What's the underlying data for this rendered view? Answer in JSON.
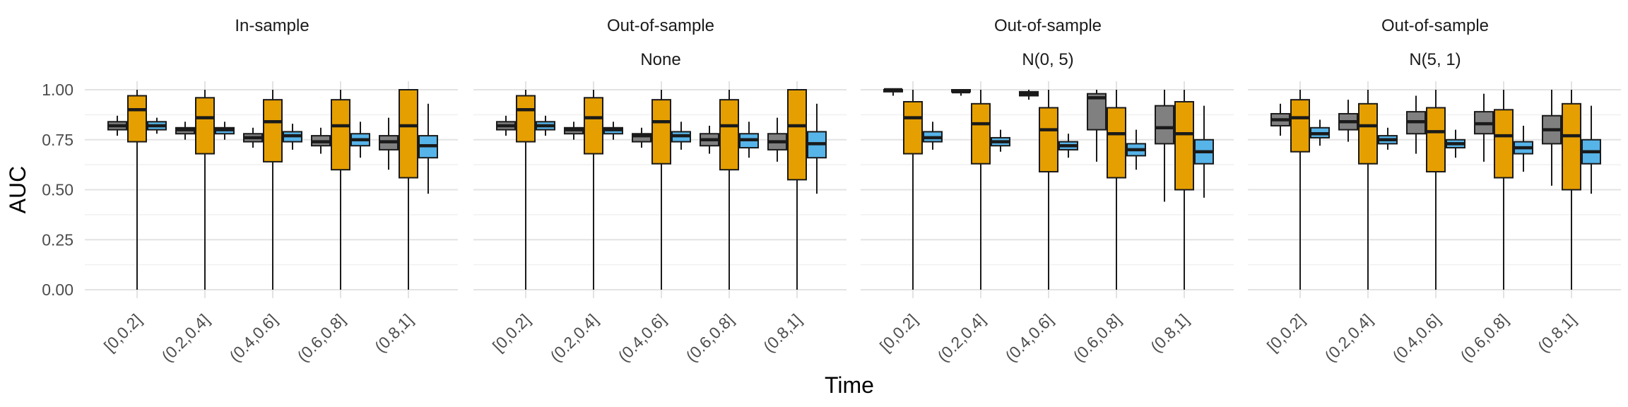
{
  "chart_data": {
    "type": "boxplot",
    "xlabel": "Time",
    "ylabel": "AUC",
    "ylim": [
      0,
      1
    ],
    "y_ticks": [
      "0.00",
      "0.25",
      "0.50",
      "0.75",
      "1.00"
    ],
    "y_tick_values": [
      0,
      0.25,
      0.5,
      0.75,
      1.0
    ],
    "categories": [
      "[0,0.2]",
      "(0.2,0.4]",
      "(0.4,0.6]",
      "(0.6,0.8]",
      "(0.8,1]"
    ],
    "series_colors": [
      "#808080",
      "#E69F00",
      "#56B4E9"
    ],
    "grid": true,
    "panels": [
      {
        "strip": [
          "In-sample"
        ],
        "boxes": [
          [
            [
              0.8,
              0.82,
              0.84,
              0.77,
              0.87
            ],
            [
              0.74,
              0.9,
              0.97,
              0.0,
              1.0
            ],
            [
              0.8,
              0.82,
              0.84,
              0.78,
              0.86
            ]
          ],
          [
            [
              0.78,
              0.8,
              0.81,
              0.75,
              0.84
            ],
            [
              0.68,
              0.86,
              0.96,
              0.0,
              1.0
            ],
            [
              0.78,
              0.8,
              0.81,
              0.75,
              0.84
            ]
          ],
          [
            [
              0.74,
              0.76,
              0.78,
              0.71,
              0.81
            ],
            [
              0.64,
              0.84,
              0.95,
              0.0,
              1.0
            ],
            [
              0.74,
              0.77,
              0.79,
              0.7,
              0.83
            ]
          ],
          [
            [
              0.72,
              0.74,
              0.77,
              0.68,
              0.81
            ],
            [
              0.6,
              0.82,
              0.95,
              0.0,
              1.0
            ],
            [
              0.72,
              0.75,
              0.78,
              0.66,
              0.84
            ]
          ],
          [
            [
              0.7,
              0.74,
              0.77,
              0.6,
              0.86
            ],
            [
              0.56,
              0.82,
              1.0,
              0.0,
              1.0
            ],
            [
              0.66,
              0.72,
              0.77,
              0.48,
              0.93
            ]
          ]
        ]
      },
      {
        "strip": [
          "Out-of-sample",
          "None"
        ],
        "boxes": [
          [
            [
              0.8,
              0.82,
              0.84,
              0.77,
              0.87
            ],
            [
              0.74,
              0.9,
              0.97,
              0.0,
              1.0
            ],
            [
              0.8,
              0.82,
              0.84,
              0.77,
              0.87
            ]
          ],
          [
            [
              0.78,
              0.8,
              0.81,
              0.75,
              0.84
            ],
            [
              0.68,
              0.86,
              0.96,
              0.0,
              1.0
            ],
            [
              0.78,
              0.8,
              0.81,
              0.75,
              0.84
            ]
          ],
          [
            [
              0.74,
              0.77,
              0.78,
              0.71,
              0.81
            ],
            [
              0.63,
              0.84,
              0.95,
              0.0,
              1.0
            ],
            [
              0.74,
              0.77,
              0.79,
              0.7,
              0.84
            ]
          ],
          [
            [
              0.72,
              0.75,
              0.78,
              0.68,
              0.82
            ],
            [
              0.6,
              0.82,
              0.95,
              0.0,
              1.0
            ],
            [
              0.71,
              0.75,
              0.78,
              0.66,
              0.84
            ]
          ],
          [
            [
              0.7,
              0.74,
              0.78,
              0.64,
              0.86
            ],
            [
              0.55,
              0.82,
              1.0,
              0.0,
              1.0
            ],
            [
              0.66,
              0.73,
              0.79,
              0.48,
              0.93
            ]
          ]
        ]
      },
      {
        "strip": [
          "Out-of-sample",
          "N(0, 5)"
        ],
        "boxes": [
          [
            [
              0.99,
              1.0,
              1.0,
              0.97,
              1.0
            ],
            [
              0.68,
              0.86,
              0.94,
              0.0,
              1.0
            ],
            [
              0.74,
              0.76,
              0.79,
              0.7,
              0.84
            ]
          ],
          [
            [
              0.99,
              0.99,
              1.0,
              0.97,
              1.0
            ],
            [
              0.63,
              0.83,
              0.93,
              0.0,
              1.0
            ],
            [
              0.72,
              0.74,
              0.76,
              0.69,
              0.8
            ]
          ],
          [
            [
              0.97,
              0.98,
              0.99,
              0.95,
              1.0
            ],
            [
              0.59,
              0.8,
              0.91,
              0.0,
              1.0
            ],
            [
              0.7,
              0.72,
              0.74,
              0.66,
              0.78
            ]
          ],
          [
            [
              0.8,
              0.96,
              0.98,
              0.64,
              1.0
            ],
            [
              0.56,
              0.78,
              0.91,
              0.0,
              1.0
            ],
            [
              0.67,
              0.7,
              0.73,
              0.6,
              0.8
            ]
          ],
          [
            [
              0.73,
              0.81,
              0.92,
              0.44,
              1.0
            ],
            [
              0.5,
              0.78,
              0.94,
              0.0,
              1.0
            ],
            [
              0.63,
              0.69,
              0.75,
              0.46,
              0.92
            ]
          ]
        ]
      },
      {
        "strip": [
          "Out-of-sample",
          "N(5, 1)"
        ],
        "boxes": [
          [
            [
              0.82,
              0.85,
              0.88,
              0.77,
              0.93
            ],
            [
              0.69,
              0.86,
              0.95,
              0.0,
              1.0
            ],
            [
              0.76,
              0.78,
              0.81,
              0.72,
              0.85
            ]
          ],
          [
            [
              0.8,
              0.84,
              0.88,
              0.74,
              0.95
            ],
            [
              0.63,
              0.82,
              0.93,
              0.0,
              1.0
            ],
            [
              0.73,
              0.75,
              0.77,
              0.7,
              0.81
            ]
          ],
          [
            [
              0.78,
              0.84,
              0.89,
              0.68,
              0.97
            ],
            [
              0.59,
              0.79,
              0.91,
              0.0,
              1.0
            ],
            [
              0.71,
              0.73,
              0.75,
              0.66,
              0.8
            ]
          ],
          [
            [
              0.78,
              0.83,
              0.89,
              0.64,
              0.98
            ],
            [
              0.56,
              0.77,
              0.9,
              0.0,
              1.0
            ],
            [
              0.68,
              0.71,
              0.74,
              0.59,
              0.82
            ]
          ],
          [
            [
              0.73,
              0.8,
              0.87,
              0.52,
              1.0
            ],
            [
              0.5,
              0.77,
              0.93,
              0.0,
              1.0
            ],
            [
              0.63,
              0.69,
              0.75,
              0.48,
              0.92
            ]
          ]
        ]
      }
    ]
  }
}
